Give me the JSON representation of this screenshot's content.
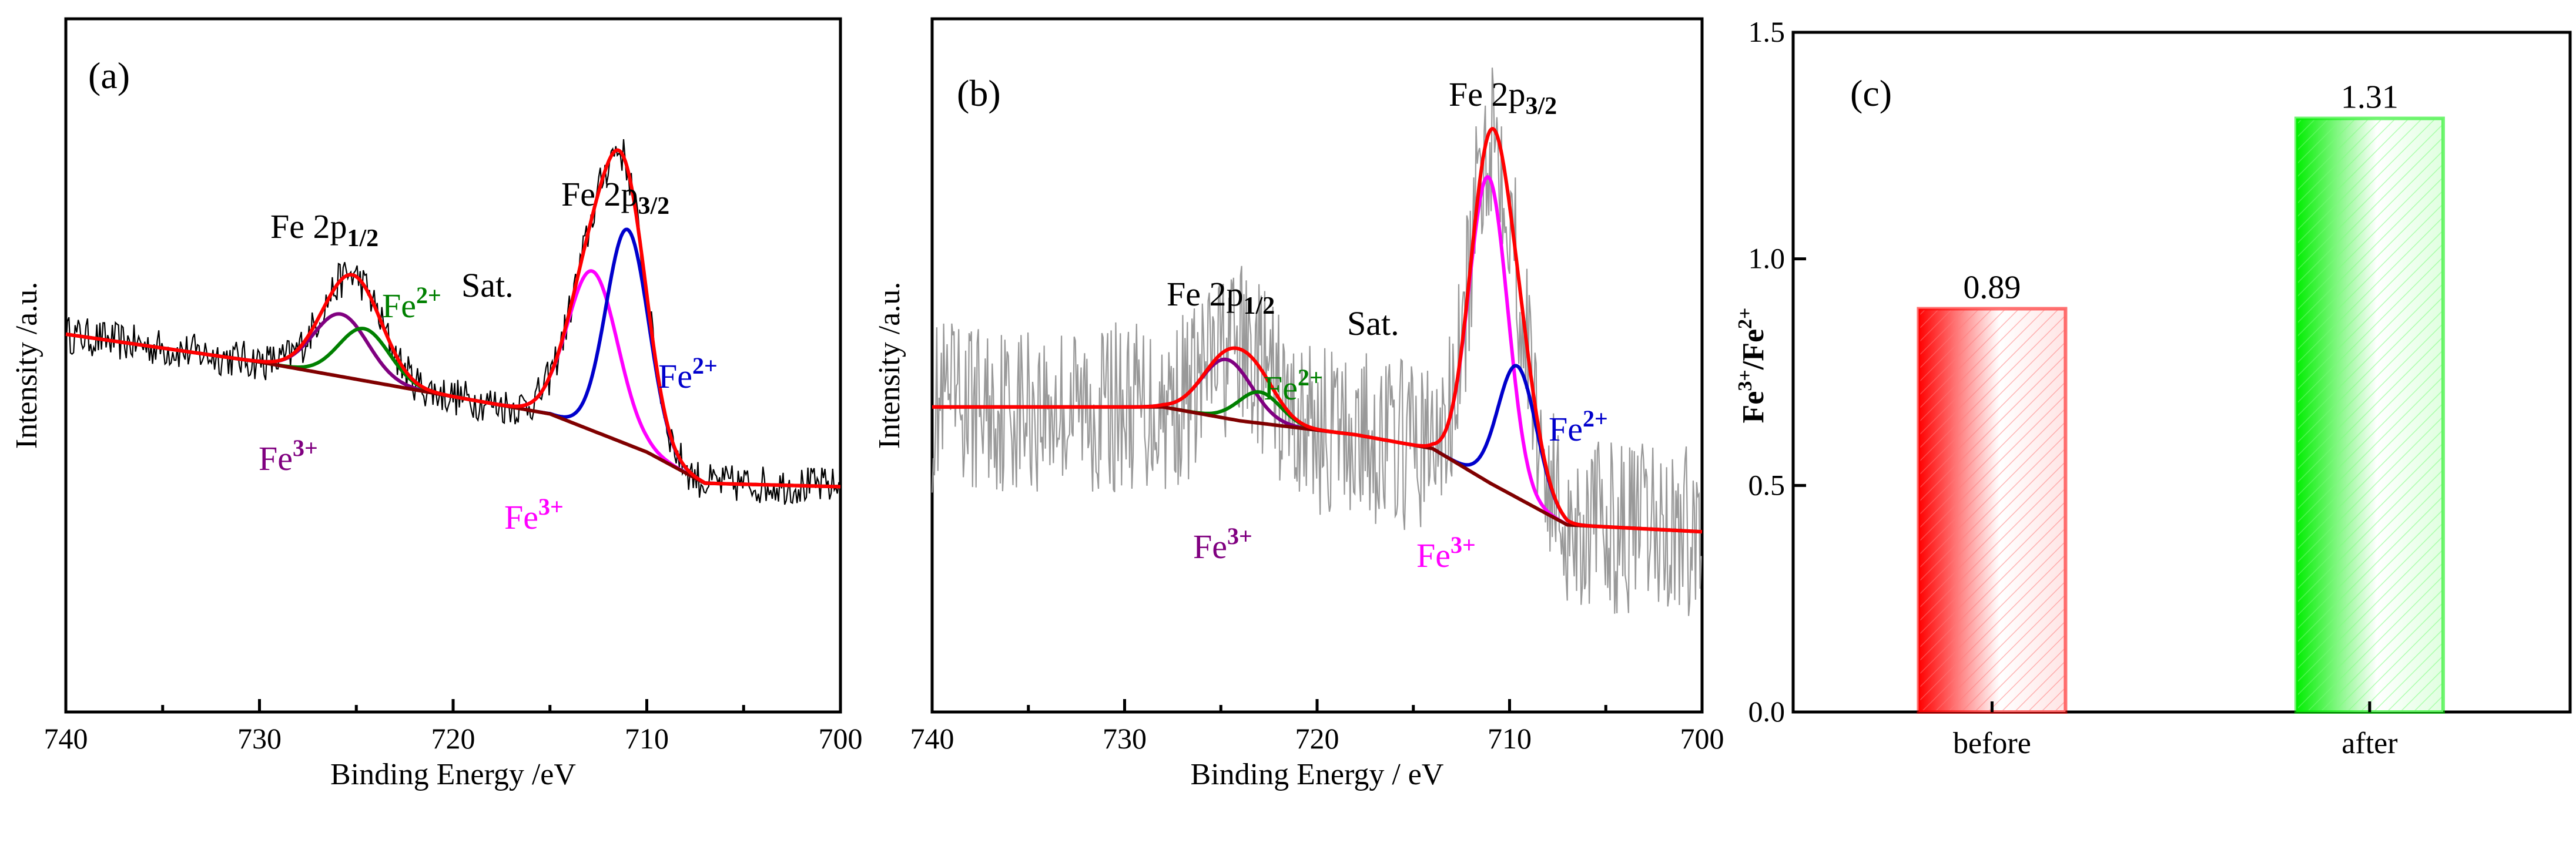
{
  "chart_data": [
    {
      "type": "line",
      "panel_label": "(a)",
      "xlabel": "Binding Energy /eV",
      "ylabel": "Intensity /a.u.",
      "xlim": [
        740,
        700
      ],
      "x_ticks": [
        "740",
        "730",
        "720",
        "710",
        "700"
      ],
      "x_tick_values": [
        740,
        730,
        720,
        710,
        700
      ],
      "ylim": [
        0,
        10
      ],
      "annotations": {
        "p12_main": "Fe 2p",
        "p12_sub": "1/2",
        "p32_main": "Fe 2p",
        "p32_sub": "3/2",
        "sat": "Sat.",
        "fe2_left_main": "Fe",
        "fe2_left_sup": "2+",
        "fe2_right_main": "Fe",
        "fe2_right_sup": "2+",
        "fe3_left_main": "Fe",
        "fe3_left_sup": "3+",
        "fe3_right_main": "Fe",
        "fe3_right_sup": "3+"
      },
      "background": {
        "x": [
          740,
          730,
          720,
          715,
          710,
          707,
          700
        ],
        "y": [
          5.45,
          5.05,
          4.55,
          4.3,
          3.75,
          3.3,
          3.25
        ]
      },
      "peaks": [
        {
          "name": "Fe3+ 2p1/2",
          "color": "#800080",
          "center": 725.8,
          "height": 0.9,
          "width": 1.4
        },
        {
          "name": "Fe2+ 2p1/2",
          "color": "#008000",
          "center": 724.6,
          "height": 0.75,
          "width": 1.3
        },
        {
          "name": "Fe3+ 2p3/2",
          "color": "#ff00ff",
          "center": 712.8,
          "height": 2.3,
          "width": 1.3
        },
        {
          "name": "Fe2+ 2p3/2",
          "color": "#0000cc",
          "center": 711.0,
          "height": 3.1,
          "width": 1.1
        }
      ],
      "raw_noise": 0.28,
      "raw_color": "#000000",
      "envelope_color": "#ff0000",
      "background_color": "#800000"
    },
    {
      "type": "line",
      "panel_label": "(b)",
      "xlabel": "Binding Energy / eV",
      "ylabel": "Intensity /a.u.",
      "xlim": [
        740,
        700
      ],
      "x_ticks": [
        "740",
        "730",
        "720",
        "710",
        "700"
      ],
      "x_tick_values": [
        740,
        730,
        720,
        710,
        700
      ],
      "ylim": [
        0,
        10
      ],
      "annotations": {
        "p12_main": "Fe 2p",
        "p12_sub": "1/2",
        "p32_main": "Fe 2p",
        "p32_sub": "3/2",
        "sat": "Sat.",
        "fe2_left_main": "Fe",
        "fe2_left_sup": "2+",
        "fe2_right_main": "Fe",
        "fe2_right_sup": "2+",
        "fe3_left_main": "Fe",
        "fe3_left_sup": "3+",
        "fe3_right_main": "Fe",
        "fe3_right_sup": "3+"
      },
      "background": {
        "x": [
          740,
          728,
          724,
          718,
          714,
          711,
          707,
          700
        ],
        "y": [
          4.4,
          4.4,
          4.2,
          4.0,
          3.8,
          3.3,
          2.7,
          2.6
        ]
      },
      "peaks": [
        {
          "name": "Fe3+ 2p1/2",
          "color": "#800080",
          "center": 724.7,
          "height": 0.85,
          "width": 1.3
        },
        {
          "name": "Fe2+ 2p1/2",
          "color": "#008000",
          "center": 723.0,
          "height": 0.45,
          "width": 1.1
        },
        {
          "name": "Fe3+ 2p3/2",
          "color": "#ff00ff",
          "center": 711.1,
          "height": 4.4,
          "width": 1.0
        },
        {
          "name": "Fe2+ 2p3/2",
          "color": "#0000cc",
          "center": 709.6,
          "height": 1.9,
          "width": 1.0
        }
      ],
      "raw_noise": 1.25,
      "raw_color": "#999999",
      "envelope_color": "#ff0000",
      "background_color": "#800000"
    },
    {
      "type": "bar",
      "panel_label": "(c)",
      "categories": [
        "before",
        "after"
      ],
      "values": [
        0.89,
        1.31
      ],
      "value_labels": [
        "0.89",
        "1.31"
      ],
      "colors": [
        "#ff0000",
        "#00ee00"
      ],
      "ylim": [
        0,
        1.5
      ],
      "y_ticks": [
        "0.0",
        "0.5",
        "1.0",
        "1.5"
      ],
      "y_tick_values": [
        0,
        0.5,
        1.0,
        1.5
      ],
      "ylabel_parts": {
        "a": "Fe",
        "a_sup": "3+",
        "slash": "/Fe",
        "b_sup": "2+"
      }
    }
  ]
}
